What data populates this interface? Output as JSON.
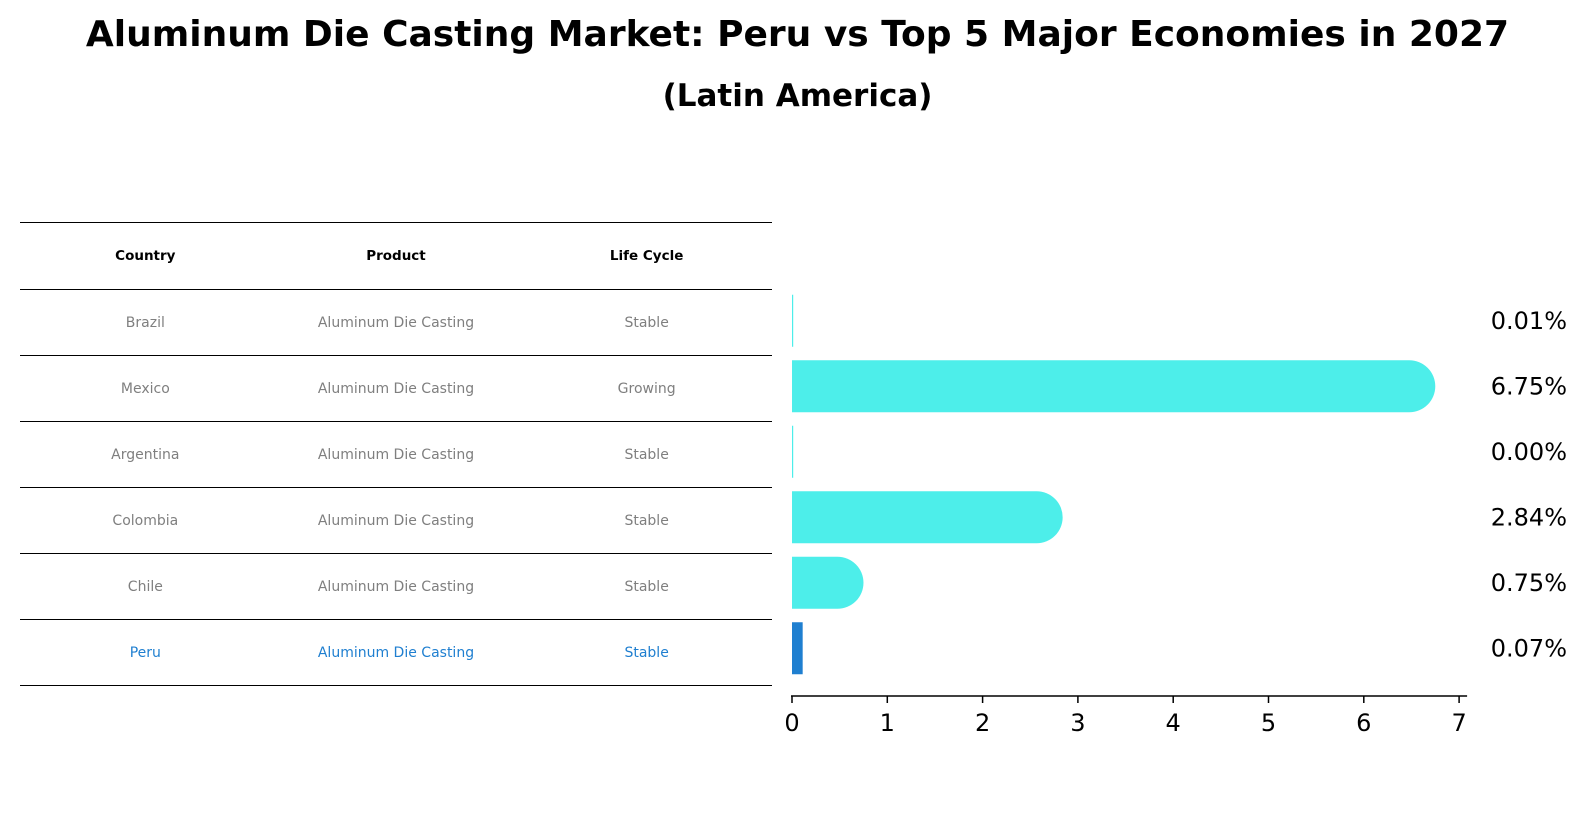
{
  "chart_data": {
    "type": "bar",
    "orientation": "horizontal",
    "title": "Aluminum Die Casting Market: Peru vs Top 5 Major Economies in 2027",
    "subtitle": "(Latin America)",
    "categories": [
      "Brazil",
      "Mexico",
      "Argentina",
      "Colombia",
      "Chile",
      "Peru"
    ],
    "values": [
      0.01,
      6.75,
      0.0,
      2.84,
      0.75,
      0.07
    ],
    "value_labels": [
      "0.01%",
      "6.75%",
      "0.00%",
      "2.84%",
      "0.75%",
      "0.07%"
    ],
    "highlight": "Peru",
    "xlim": [
      0,
      7
    ],
    "xticks": [
      "0",
      "1",
      "2",
      "3",
      "4",
      "5",
      "6",
      "7"
    ],
    "xlabel": "",
    "ylabel": "",
    "grid": false,
    "bar_color": "#4deeea",
    "highlight_color": "#1f7fd0"
  },
  "table": {
    "columns": [
      "Country",
      "Product",
      "Life Cycle"
    ],
    "rows": [
      [
        "Brazil",
        "Aluminum Die Casting",
        "Stable"
      ],
      [
        "Mexico",
        "Aluminum Die Casting",
        "Growing"
      ],
      [
        "Argentina",
        "Aluminum Die Casting",
        "Stable"
      ],
      [
        "Colombia",
        "Aluminum Die Casting",
        "Stable"
      ],
      [
        "Chile",
        "Aluminum Die Casting",
        "Stable"
      ],
      [
        "Peru",
        "Aluminum Die Casting",
        "Stable"
      ]
    ]
  },
  "colors": {
    "text_muted": "#7f7f7f",
    "highlight": "#1f7fd0"
  }
}
